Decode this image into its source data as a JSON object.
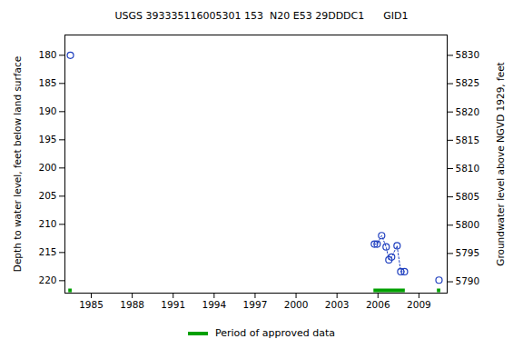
{
  "chart_data": {
    "type": "scatter",
    "title": "USGS 393335116005301 153  N20 E53 29DDDC1      GID1",
    "y_label": "Depth to water level, feet below land surface",
    "y2_label": "Groundwater level above NGVD 1929, feet",
    "xlim": [
      1983.07,
      2011.07
    ],
    "xticks": [
      1985,
      1988,
      1991,
      1994,
      1997,
      2000,
      2003,
      2006,
      2009
    ],
    "ylim": [
      176.4,
      222.2
    ],
    "yticks": [
      180,
      185,
      190,
      195,
      200,
      205,
      210,
      215,
      220
    ],
    "y2lim": [
      5788,
      5833.6
    ],
    "y2ticks": [
      5790,
      5795,
      5800,
      5805,
      5810,
      5815,
      5820,
      5825,
      5830
    ],
    "series": [
      {
        "x": [
          1983.47
        ],
        "values": [
          180
        ],
        "color": "#1f3fbf",
        "marker": "circle",
        "line_style": "dotted"
      },
      {
        "x": [
          2005.74,
          2005.94,
          2006.27,
          2006.6,
          2006.8,
          2007.0,
          2007.4,
          2007.67,
          2007.94
        ],
        "values": [
          213.5,
          213.5,
          212,
          214,
          216.3,
          215.8,
          213.8,
          218.4,
          218.4
        ],
        "color": "#1f3fbf",
        "marker": "circle",
        "line_style": "dotted"
      },
      {
        "x": [
          2010.47
        ],
        "values": [
          219.9
        ],
        "color": "#1f3fbf",
        "marker": "circle",
        "line_style": "dotted"
      }
    ],
    "approved_periods": {
      "name": "Period of approved data",
      "color": "#00a000",
      "ranges": [
        [
          1983.35,
          1983.6
        ],
        [
          2005.7,
          2008.0
        ],
        [
          2010.35,
          2010.6
        ]
      ]
    }
  }
}
